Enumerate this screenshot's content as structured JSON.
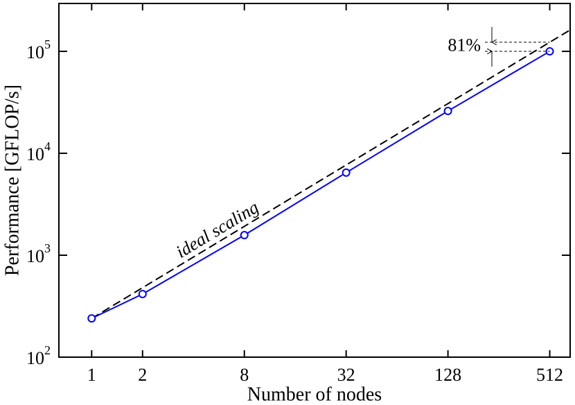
{
  "chart_data": {
    "type": "line",
    "xlabel": "Number of nodes",
    "ylabel": "Performance [GFLOP/s]",
    "xscale": "log",
    "yscale": "log",
    "xlim": [
      0.64,
      676
    ],
    "ylim": [
      100,
      295000
    ],
    "xticks": [
      1,
      2,
      8,
      32,
      128,
      512
    ],
    "yticks": [
      {
        "value": 100,
        "label": "10",
        "exponent": "2"
      },
      {
        "value": 1000,
        "label": "10",
        "exponent": "3"
      },
      {
        "value": 10000,
        "label": "10",
        "exponent": "4"
      },
      {
        "value": 100000,
        "label": "10",
        "exponent": "5"
      }
    ],
    "x": [
      1,
      2,
      8,
      32,
      128,
      512
    ],
    "series": [
      {
        "name": "ideal scaling",
        "color": "#000000",
        "dashed": true,
        "x": [
          1,
          676
        ],
        "values": [
          240,
          162240
        ]
      },
      {
        "color": "#0000ff",
        "markers": true,
        "values": [
          240,
          416,
          1575,
          6460,
          26000,
          100000
        ]
      }
    ],
    "annotation": "81%"
  }
}
